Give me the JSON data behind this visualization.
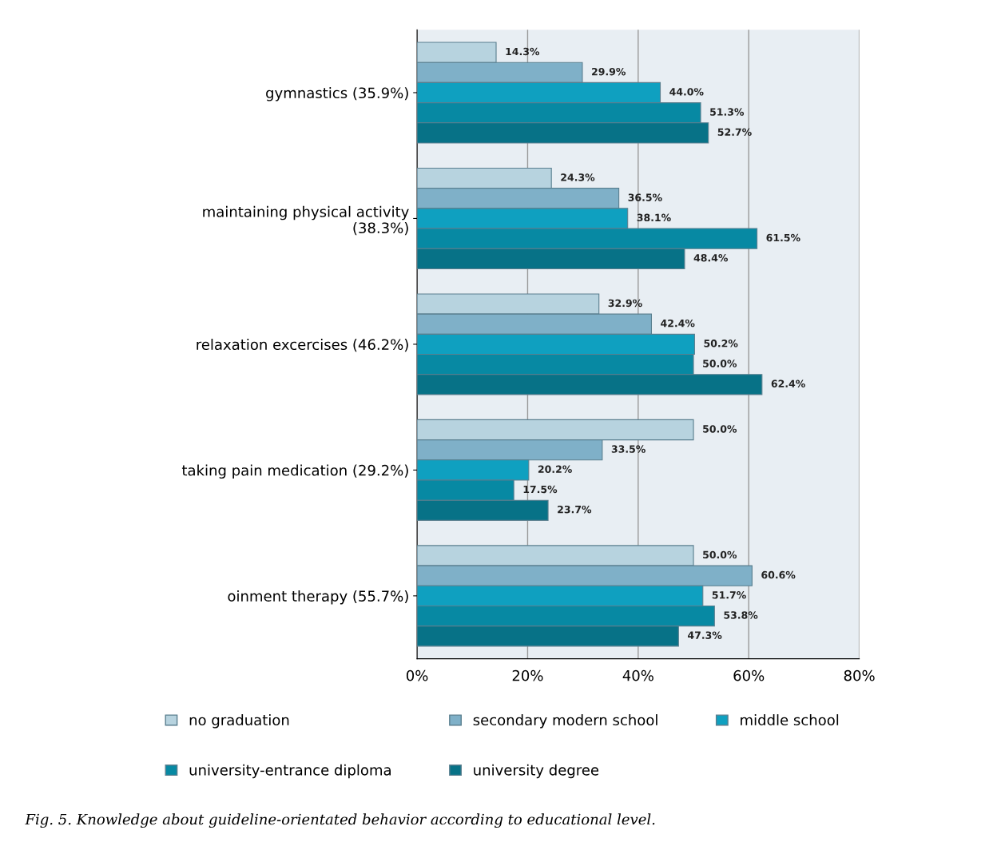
{
  "chart_data": {
    "type": "bar",
    "orientation": "horizontal",
    "categories": [
      "gymnastics (35.9%)",
      "maintaining physical activity\n(38.3%)",
      "relaxation excercises (46.2%)",
      "taking pain medication (29.2%)",
      "oinment therapy (55.7%)"
    ],
    "series": [
      {
        "name": "no graduation",
        "color": "#b7d3df",
        "values": [
          14.3,
          24.3,
          32.9,
          50.0,
          50.0
        ],
        "value_labels": [
          "14.3%",
          "24.3%",
          "32.9%",
          "50.0%",
          "50.0%"
        ]
      },
      {
        "name": "secondary modern school",
        "color": "#7fb0c8",
        "values": [
          29.9,
          36.5,
          42.4,
          33.5,
          60.6
        ],
        "value_labels": [
          "29.9%",
          "36.5%",
          "42.4%",
          "33.5%",
          "60.6%"
        ]
      },
      {
        "name": "middle school",
        "color": "#0fa0c0",
        "values": [
          44.0,
          38.1,
          50.2,
          20.2,
          51.7
        ],
        "value_labels": [
          "44.0%",
          "38.1%",
          "50.2%",
          "20.2%",
          "51.7%"
        ]
      },
      {
        "name": "university-entrance diploma",
        "color": "#0789a3",
        "values": [
          51.3,
          61.5,
          50.0,
          17.5,
          53.8
        ],
        "value_labels": [
          "51.3%",
          "61.5%",
          "50.0%",
          "17.5%",
          "53.8%"
        ]
      },
      {
        "name": "university degree",
        "color": "#077287",
        "values": [
          52.7,
          48.4,
          62.4,
          23.7,
          47.3
        ],
        "value_labels": [
          "52.7%",
          "48.4%",
          "62.4%",
          "23.7%",
          "47.3%"
        ]
      }
    ],
    "xlim": [
      0,
      80
    ],
    "xticks": [
      {
        "value": 0,
        "label": "0%"
      },
      {
        "value": 20,
        "label": "20%"
      },
      {
        "value": 40,
        "label": "40%"
      },
      {
        "value": 60,
        "label": "60%"
      },
      {
        "value": 80,
        "label": "80%"
      }
    ],
    "grid": "x",
    "legend": "bottom",
    "annotations": [
      "Fig. 5. Knowledge about guideline-orientated behavior according to educational level."
    ]
  }
}
